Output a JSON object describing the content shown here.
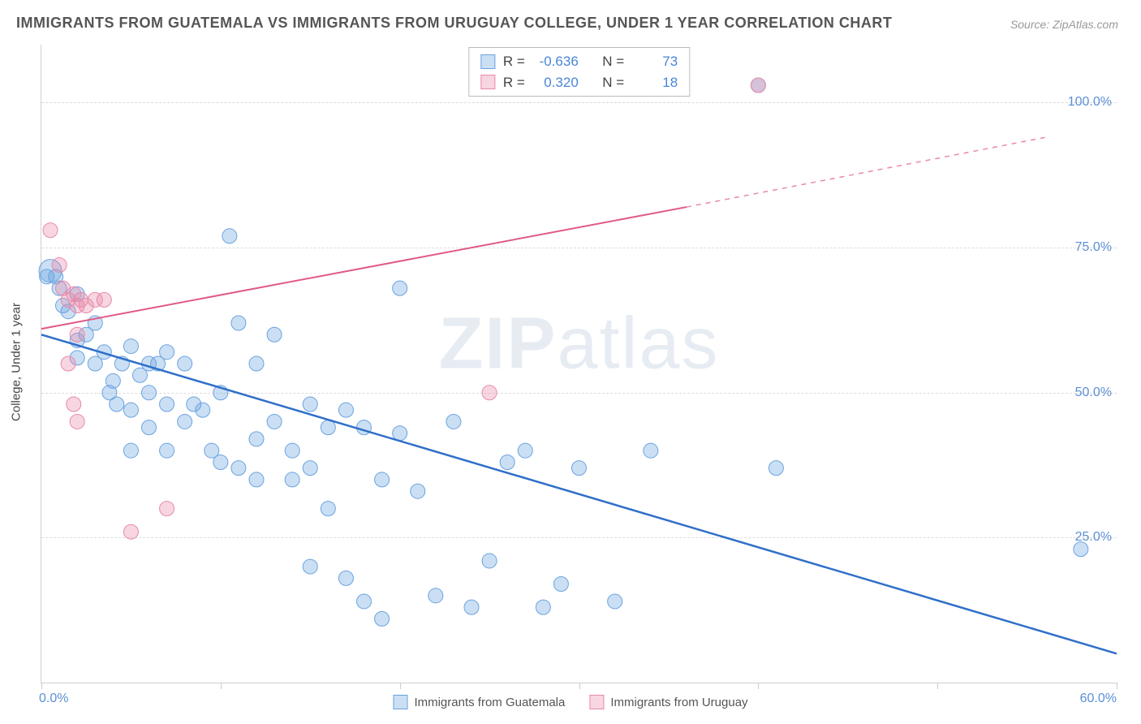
{
  "title": "IMMIGRANTS FROM GUATEMALA VS IMMIGRANTS FROM URUGUAY COLLEGE, UNDER 1 YEAR CORRELATION CHART",
  "source": "Source: ZipAtlas.com",
  "y_axis_label": "College, Under 1 year",
  "watermark_a": "ZIP",
  "watermark_b": "atlas",
  "x_tick_labels": {
    "min": "0.0%",
    "max": "60.0%"
  },
  "y_tick_labels": [
    "25.0%",
    "50.0%",
    "75.0%",
    "100.0%"
  ],
  "series": [
    {
      "name": "Immigrants from Guatemala",
      "label": "Immigrants from Guatemala",
      "color": "#6aa3e0",
      "fill": "rgba(106,163,224,0.35)",
      "stroke": "#6aa3e0",
      "R": "-0.636",
      "N": "73",
      "line": {
        "x1": 0,
        "y1": 60,
        "x2": 60,
        "y2": 5
      },
      "points": [
        [
          0.5,
          71
        ],
        [
          1,
          68
        ],
        [
          0.8,
          70
        ],
        [
          1.2,
          65
        ],
        [
          1.5,
          64
        ],
        [
          2,
          67
        ],
        [
          2,
          59
        ],
        [
          2,
          56
        ],
        [
          2.5,
          60
        ],
        [
          3,
          62
        ],
        [
          3,
          55
        ],
        [
          3.5,
          57
        ],
        [
          3.8,
          50
        ],
        [
          4,
          52
        ],
        [
          4.2,
          48
        ],
        [
          4.5,
          55
        ],
        [
          5,
          58
        ],
        [
          5,
          47
        ],
        [
          5,
          40
        ],
        [
          5.5,
          53
        ],
        [
          6,
          55
        ],
        [
          6,
          50
        ],
        [
          6,
          44
        ],
        [
          6.5,
          55
        ],
        [
          7,
          57
        ],
        [
          7,
          48
        ],
        [
          7,
          40
        ],
        [
          8,
          55
        ],
        [
          8,
          45
        ],
        [
          8.5,
          48
        ],
        [
          9,
          47
        ],
        [
          9.5,
          40
        ],
        [
          10,
          50
        ],
        [
          10,
          38
        ],
        [
          10.5,
          77
        ],
        [
          11,
          62
        ],
        [
          11,
          37
        ],
        [
          12,
          55
        ],
        [
          12,
          42
        ],
        [
          12,
          35
        ],
        [
          13,
          45
        ],
        [
          13,
          60
        ],
        [
          14,
          40
        ],
        [
          14,
          35
        ],
        [
          15,
          48
        ],
        [
          15,
          37
        ],
        [
          15,
          20
        ],
        [
          16,
          44
        ],
        [
          16,
          30
        ],
        [
          17,
          47
        ],
        [
          17,
          18
        ],
        [
          18,
          44
        ],
        [
          18,
          14
        ],
        [
          19,
          35
        ],
        [
          19,
          11
        ],
        [
          20,
          43
        ],
        [
          20,
          68
        ],
        [
          21,
          33
        ],
        [
          22,
          15
        ],
        [
          23,
          45
        ],
        [
          24,
          13
        ],
        [
          25,
          21
        ],
        [
          26,
          38
        ],
        [
          27,
          40
        ],
        [
          28,
          13
        ],
        [
          29,
          17
        ],
        [
          30,
          37
        ],
        [
          32,
          14
        ],
        [
          34,
          40
        ],
        [
          40,
          103
        ],
        [
          41,
          37
        ],
        [
          58,
          23
        ],
        [
          0.3,
          70
        ]
      ],
      "point_sizes": [
        14,
        9,
        9,
        9,
        9,
        9,
        9,
        9,
        9,
        9,
        9,
        9,
        9,
        9,
        9,
        9,
        9,
        9,
        9,
        9,
        9,
        9,
        9,
        9,
        9,
        9,
        9,
        9,
        9,
        9,
        9,
        9,
        9,
        9,
        9,
        9,
        9,
        9,
        9,
        9,
        9,
        9,
        9,
        9,
        9,
        9,
        9,
        9,
        9,
        9,
        9,
        9,
        9,
        9,
        9,
        9,
        9,
        9,
        9,
        9,
        9,
        9,
        9,
        9,
        9,
        9,
        9,
        9,
        9,
        9,
        9,
        9,
        9
      ]
    },
    {
      "name": "Immigrants from Uruguay",
      "label": "Immigrants from Uruguay",
      "color": "#e88aa8",
      "fill": "rgba(232,138,168,0.35)",
      "stroke": "#e88aa8",
      "R": "0.320",
      "N": "18",
      "line_solid": {
        "x1": 0,
        "y1": 61,
        "x2": 36,
        "y2": 82
      },
      "line_dash": {
        "x1": 36,
        "y1": 82,
        "x2": 56,
        "y2": 94
      },
      "points": [
        [
          0.5,
          78
        ],
        [
          1,
          72
        ],
        [
          1.2,
          68
        ],
        [
          1.5,
          66
        ],
        [
          1.8,
          67
        ],
        [
          2,
          65
        ],
        [
          2.2,
          66
        ],
        [
          2.5,
          65
        ],
        [
          2,
          60
        ],
        [
          1.5,
          55
        ],
        [
          1.8,
          48
        ],
        [
          2,
          45
        ],
        [
          3,
          66
        ],
        [
          3.5,
          66
        ],
        [
          5,
          26
        ],
        [
          7,
          30
        ],
        [
          25,
          50
        ],
        [
          40,
          103
        ]
      ],
      "point_sizes": [
        9,
        9,
        9,
        9,
        9,
        9,
        9,
        9,
        9,
        9,
        9,
        9,
        9,
        9,
        9,
        9,
        9,
        9
      ]
    }
  ],
  "chart": {
    "xlim": [
      0,
      60
    ],
    "ylim": [
      0,
      110
    ],
    "y_gridlines": [
      25,
      50,
      75,
      100
    ],
    "x_ticks": [
      0,
      10,
      20,
      30,
      40,
      50,
      60
    ],
    "background_color": "#ffffff",
    "grid_color": "#dcdcdc",
    "line_width_blue": 2.5,
    "line_width_pink": 2,
    "marker_opacity": 0.6
  },
  "stat_labels": {
    "R": "R =",
    "N": "N ="
  }
}
